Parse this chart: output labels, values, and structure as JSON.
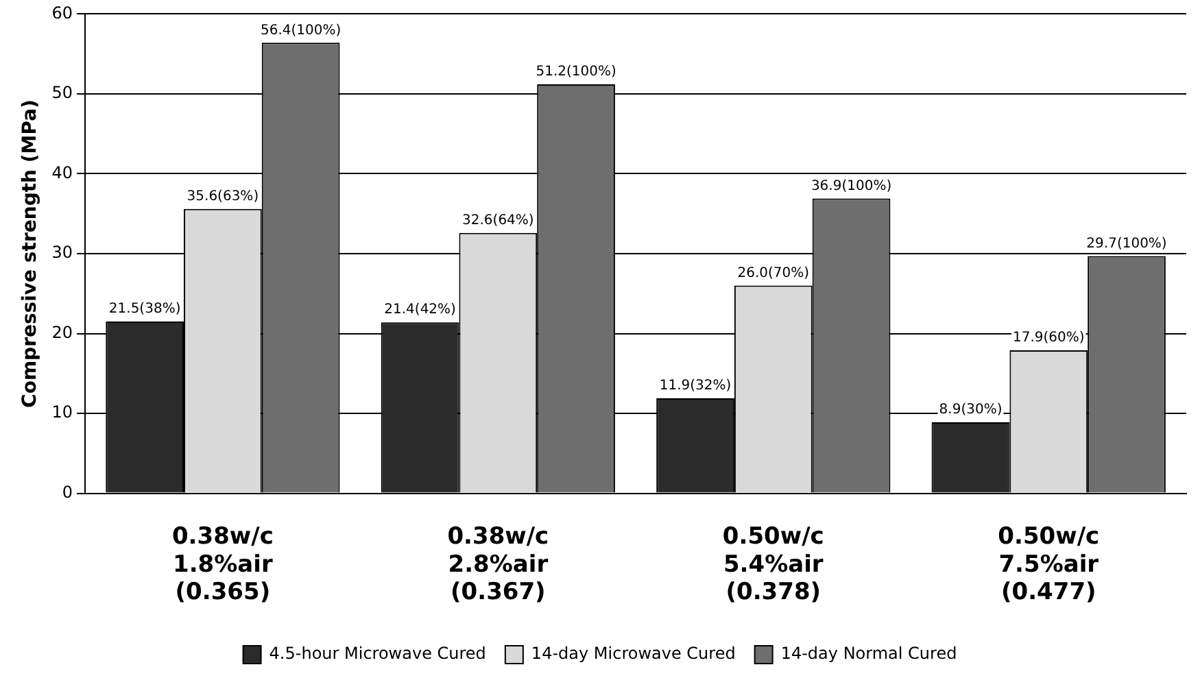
{
  "chart_data": {
    "type": "bar",
    "ylabel": "Compressive strength (MPa)",
    "categories": [
      "0.38w/c\n1.8%air\n(0.365)",
      "0.38w/c\n2.8%air\n(0.367)",
      "0.50w/c\n5.4%air\n(0.378)",
      "0.50w/c\n7.5%air\n(0.477)"
    ],
    "series": [
      {
        "name": "4.5-hour Microwave Cured",
        "color": "#2b2b2b",
        "values": [
          21.5,
          21.4,
          11.9,
          8.9
        ],
        "value_labels": [
          "21.5(38%)",
          "21.4(42%)",
          "11.9(32%)",
          "8.9(30%)"
        ]
      },
      {
        "name": "14-day Microwave Cured",
        "color": "#d9d9d9",
        "values": [
          35.6,
          32.6,
          26.0,
          17.9
        ],
        "value_labels": [
          "35.6(63%)",
          "32.6(64%)",
          "26.0(70%)",
          "17.9(60%)"
        ]
      },
      {
        "name": "14-day Normal Cured",
        "color": "#6e6e6e",
        "values": [
          56.4,
          51.2,
          36.9,
          29.7
        ],
        "value_labels": [
          "56.4(100%)",
          "51.2(100%)",
          "36.9(100%)",
          "29.7(100%)"
        ]
      }
    ],
    "ylim": [
      0,
      60
    ],
    "yticks": [
      0,
      10,
      20,
      30,
      40,
      50,
      60
    ],
    "grid": "y",
    "legend": "bottom"
  }
}
